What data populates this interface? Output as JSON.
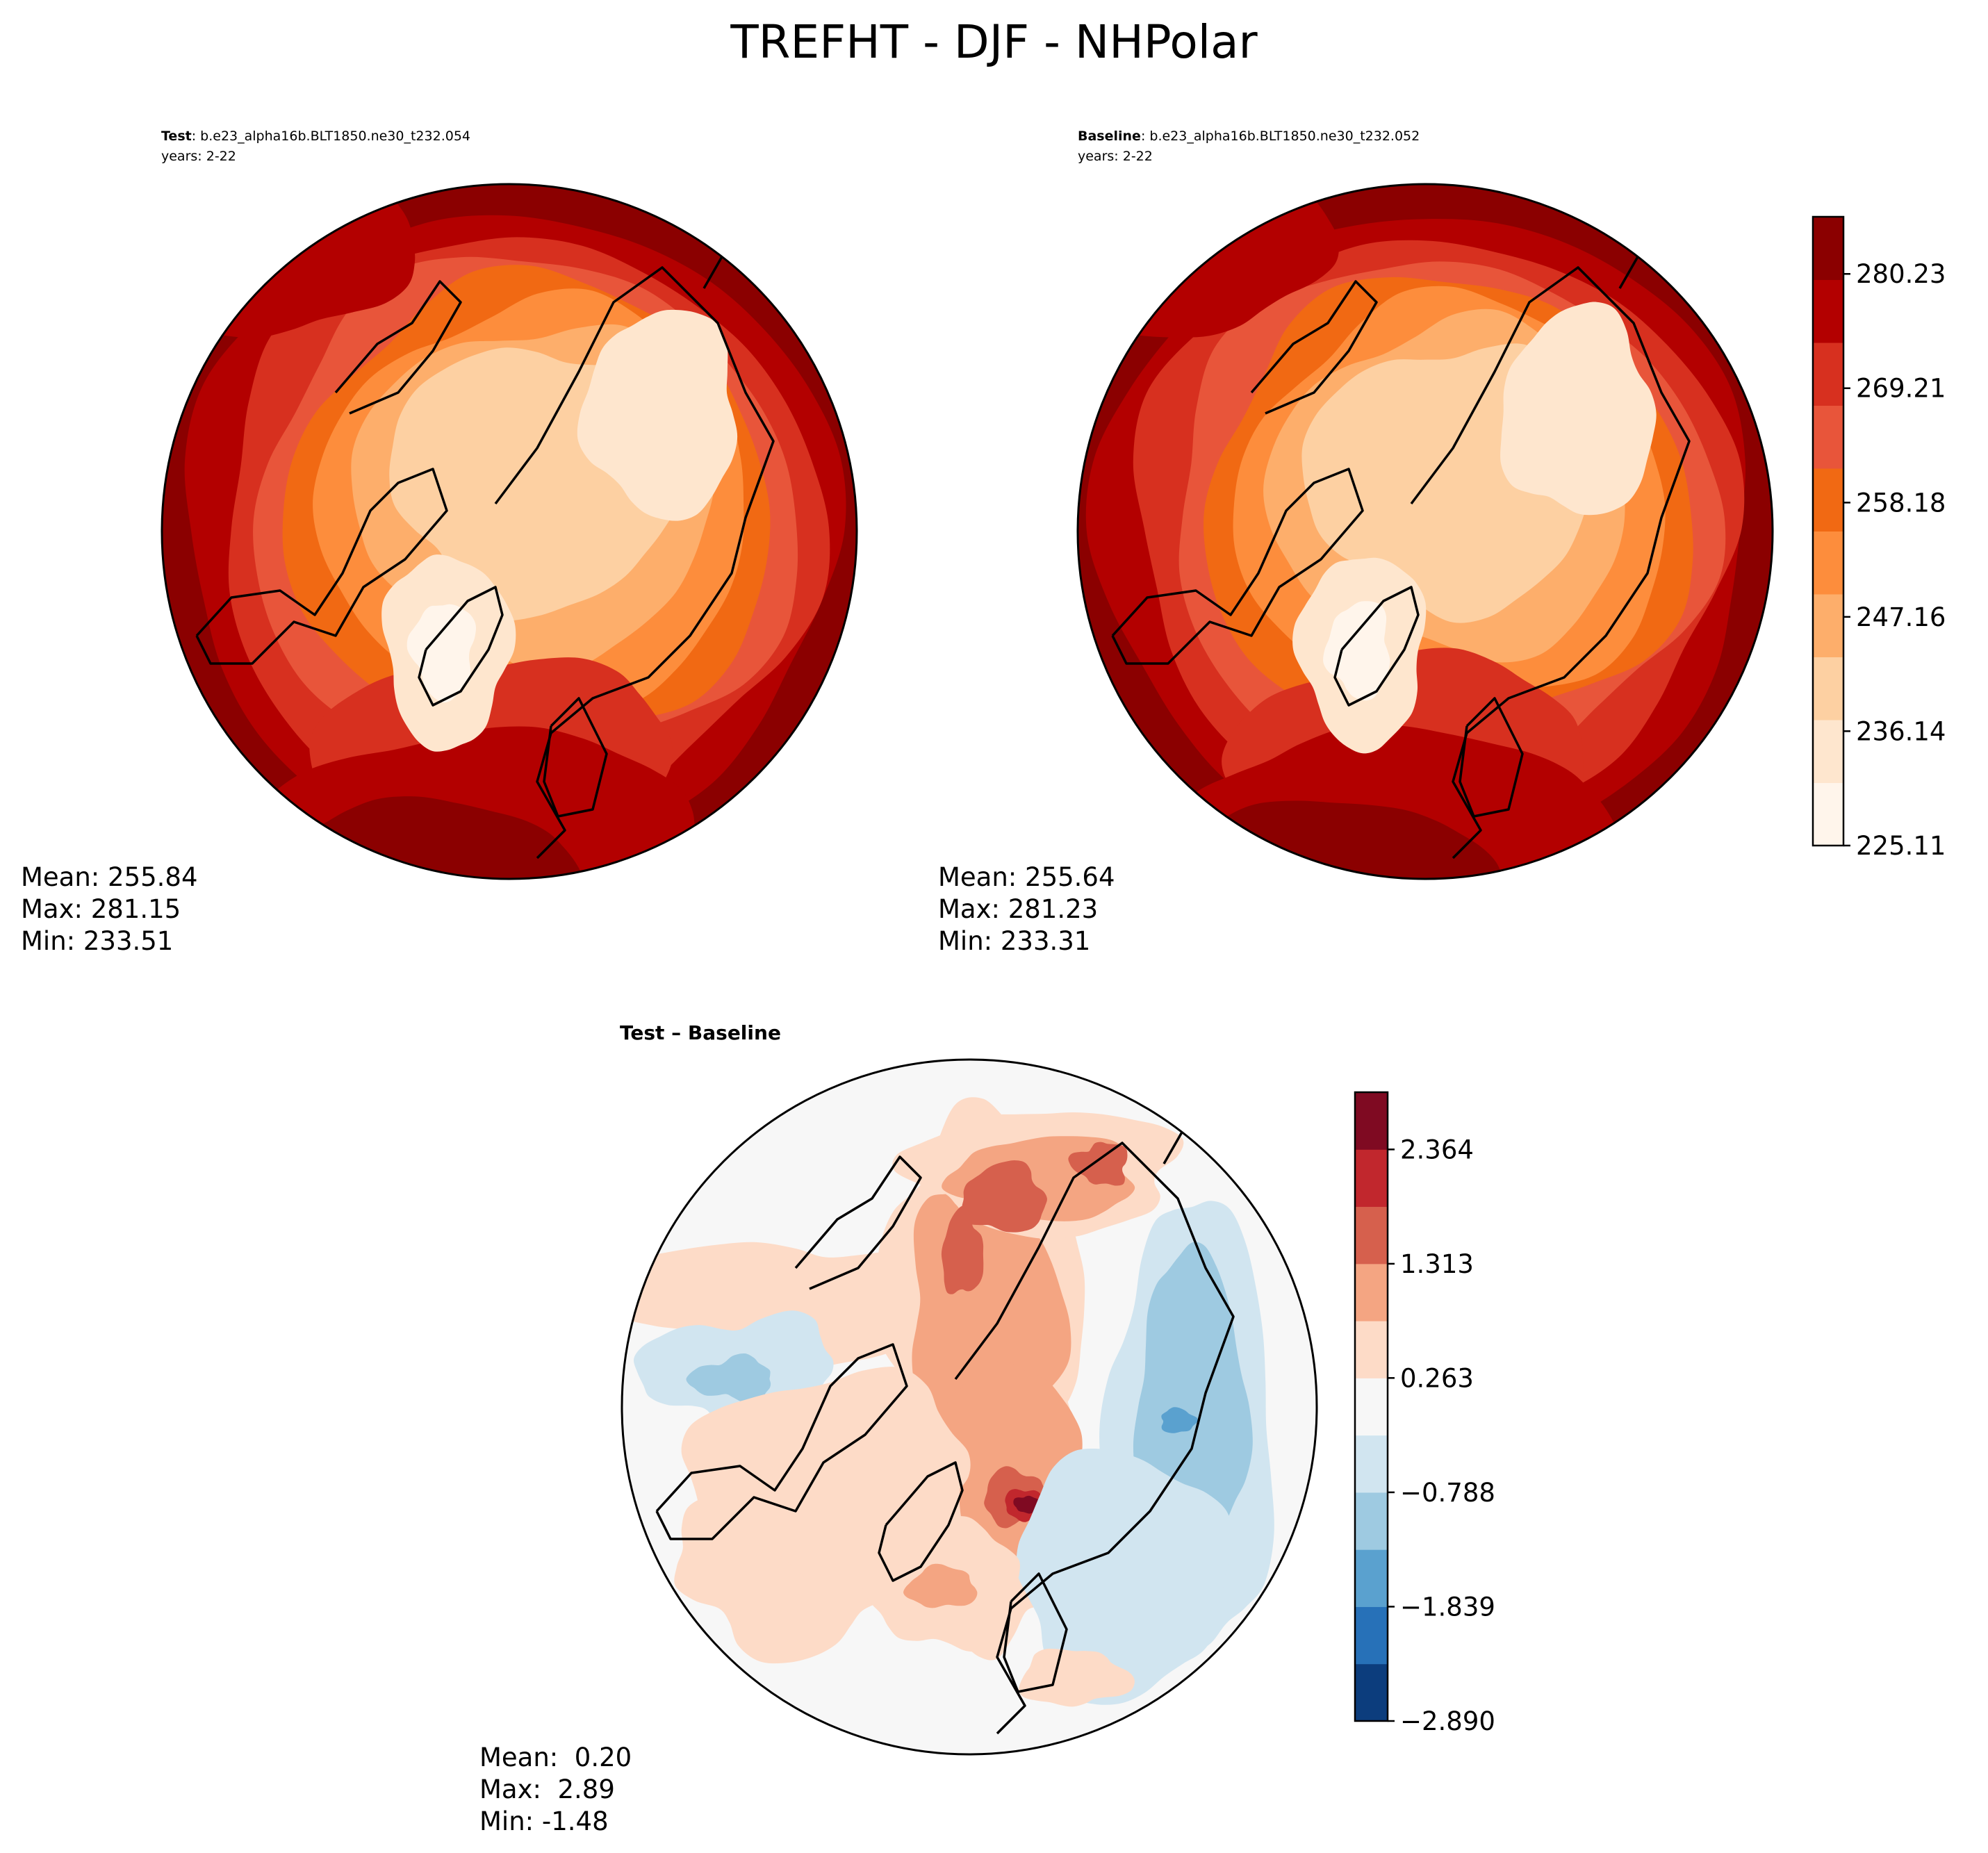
{
  "figure": {
    "title": "TREFHT - DJF - NHPolar"
  },
  "panels": {
    "test": {
      "label_bold": "Test",
      "label_rest": ": b.e23_alpha16b.BLT1850.ne30_t232.054",
      "years": "years: 2-22",
      "stats": {
        "mean": "Mean: 255.84",
        "max": "Max: 281.15",
        "min": "Min: 233.51"
      }
    },
    "baseline": {
      "label_bold": "Baseline",
      "label_rest": ": b.e23_alpha16b.BLT1850.ne30_t232.052",
      "years": "years: 2-22",
      "stats": {
        "mean": "Mean: 255.64",
        "max": "Max: 281.23",
        "min": "Min: 233.31"
      }
    },
    "diff": {
      "title": "Test – Baseline",
      "stats": {
        "mean": "Mean:  0.20",
        "max": "Max:  2.89",
        "min": "Min: -1.48"
      }
    }
  },
  "colors": {
    "temperature_levels": [
      "#fff5eb",
      "#fee6ce",
      "#fdd0a2",
      "#fdae6b",
      "#fd8d3c",
      "#f16913",
      "#e8553a",
      "#d7301f",
      "#b30000",
      "#8b0000"
    ],
    "difference_levels": [
      "#0c3d7d",
      "#2771b8",
      "#5aa1cf",
      "#9ecae1",
      "#d1e5f0",
      "#f7f7f7",
      "#fddbc7",
      "#f4a582",
      "#d6604d",
      "#c1272d",
      "#7f0a22"
    ]
  },
  "chart_data": [
    {
      "type": "heatmap",
      "projection": "north-polar-stereographic",
      "title": "Test : b.e23_alpha16b.BLT1850.ne30_t232.054",
      "variable": "TREFHT",
      "season": "DJF",
      "years": "2-22",
      "stats": {
        "mean": 255.84,
        "max": 281.15,
        "min": 233.51
      },
      "colorbar": {
        "min": 225.11,
        "max": 285.74,
        "ticks": [
          225.11,
          236.14,
          247.16,
          258.18,
          269.21,
          280.23
        ]
      }
    },
    {
      "type": "heatmap",
      "projection": "north-polar-stereographic",
      "title": "Baseline : b.e23_alpha16b.BLT1850.ne30_t232.052",
      "variable": "TREFHT",
      "season": "DJF",
      "years": "2-22",
      "stats": {
        "mean": 255.64,
        "max": 281.23,
        "min": 233.31
      },
      "colorbar": {
        "min": 225.11,
        "max": 285.74,
        "ticks": [
          225.11,
          236.14,
          247.16,
          258.18,
          269.21,
          280.23
        ]
      }
    },
    {
      "type": "heatmap",
      "projection": "north-polar-stereographic",
      "title": "Test – Baseline",
      "stats": {
        "mean": 0.2,
        "max": 2.89,
        "min": -1.48
      },
      "colorbar": {
        "min": -2.89,
        "max": 2.89,
        "ticks": [
          -2.89,
          -1.839,
          -0.788,
          0.263,
          1.313,
          2.364
        ],
        "tick_labels": [
          "−2.890",
          "−1.839",
          "−0.788",
          "0.263",
          "1.313",
          "2.364"
        ]
      }
    }
  ]
}
